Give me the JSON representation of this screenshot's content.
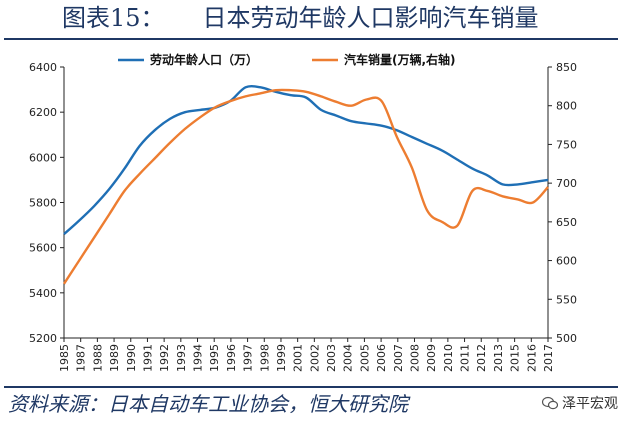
{
  "title": {
    "fig": "图表15：",
    "text": "日本劳动年龄人口影响汽车销量"
  },
  "source": "资料来源：日本自动车工业协会，恒大研究院",
  "watermark": "泽平宏观",
  "chart_data": {
    "type": "line",
    "x": [
      1985,
      1986,
      1987,
      1988,
      1989,
      1990,
      1991,
      1992,
      1993,
      1994,
      1995,
      1996,
      1997,
      1998,
      1999,
      2000,
      2001,
      2002,
      2003,
      2004,
      2005,
      2006,
      2007,
      2008,
      2009,
      2010,
      2011,
      2012,
      2013,
      2014,
      2015,
      2016,
      2017
    ],
    "x_ticks": [
      "1985",
      "1987",
      "1988",
      "1989",
      "1990",
      "1991",
      "1992",
      "1993",
      "1994",
      "1995",
      "1996",
      "1997",
      "1998",
      "1999",
      "2001",
      "2002",
      "2003",
      "2004",
      "2005",
      "2006",
      "2007",
      "2008",
      "2009",
      "2010",
      "2011",
      "2012",
      "2013",
      "2015",
      "2016",
      "2017"
    ],
    "series": [
      {
        "name": "劳动年龄人口（万）",
        "axis": "left",
        "color": "#1f6fb5",
        "values": [
          5660,
          5720,
          5785,
          5860,
          5950,
          6050,
          6120,
          6170,
          6200,
          6210,
          6220,
          6250,
          6310,
          6310,
          6290,
          6275,
          6265,
          6210,
          6185,
          6160,
          6150,
          6140,
          6120,
          6090,
          6060,
          6030,
          5990,
          5950,
          5920,
          5880,
          5880,
          5890,
          5900
        ]
      },
      {
        "name": "汽车销量(万辆,右轴)",
        "axis": "right",
        "color": "#ed7d31",
        "values": [
          570,
          600,
          630,
          660,
          690,
          712,
          732,
          752,
          770,
          785,
          798,
          806,
          812,
          816,
          820,
          820,
          818,
          812,
          805,
          800,
          808,
          806,
          760,
          720,
          665,
          650,
          645,
          690,
          690,
          683,
          679,
          675,
          695
        ]
      }
    ],
    "ylim_left": [
      5200,
      6400
    ],
    "yticks_left": [
      5200,
      5400,
      5600,
      5800,
      6000,
      6200,
      6400
    ],
    "ylim_right": [
      500,
      850
    ],
    "yticks_right": [
      500,
      550,
      600,
      650,
      700,
      750,
      800,
      850
    ],
    "legend": "top",
    "grid": false
  }
}
